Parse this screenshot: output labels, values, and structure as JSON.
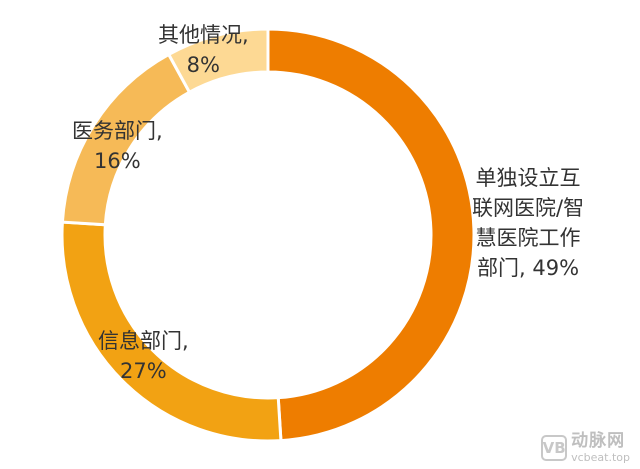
{
  "chart_data": {
    "type": "pie",
    "style": "donut",
    "slices": [
      {
        "name": "单独设立互联网医院/智慧医院工作部门",
        "value": 49,
        "color": "#ee7d00",
        "label_lines": [
          "单独设立互",
          "联网医院/智",
          "慧医院工作",
          "部门, 49%"
        ]
      },
      {
        "name": "信息部门",
        "value": 27,
        "color": "#f2a213",
        "label_lines": [
          "信息部门,",
          "27%"
        ]
      },
      {
        "name": "医务部门",
        "value": 16,
        "color": "#f6ba57",
        "label_lines": [
          "医务部门,",
          "16%"
        ]
      },
      {
        "name": "其他情况",
        "value": 8,
        "color": "#fdd994",
        "label_lines": [
          "其他情况,",
          "8%"
        ]
      }
    ],
    "start": "12 o'clock",
    "direction": "clockwise",
    "legend": "none"
  },
  "watermark": {
    "logo_text": "VB",
    "name": "动脉网",
    "url": "vcbeat.top"
  }
}
